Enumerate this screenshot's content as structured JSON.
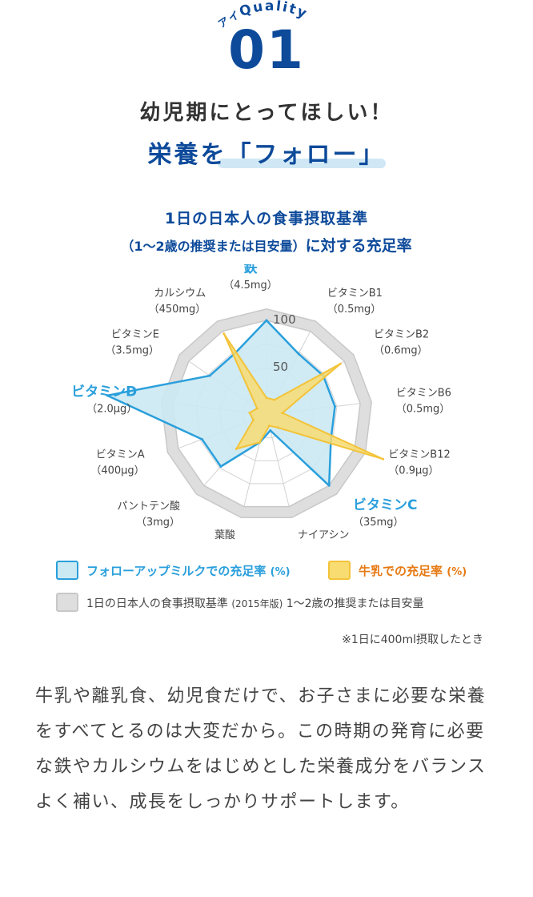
{
  "header": {
    "kicker_prefix": "アイ",
    "kicker": "Quality",
    "number": "01",
    "title_line1": "幼児期にとってほしい！",
    "title_line2": "栄養を「フォロー」"
  },
  "chart_title": {
    "line1": "1日の日本人の食事摂取基準",
    "line2_paren": "（1～2歳の推奨または目安量）",
    "line2_main": "に対する充足率"
  },
  "chart_data": {
    "type": "radar",
    "axis_ticks": [
      "50",
      "100"
    ],
    "rlim": [
      0,
      100
    ],
    "reference_level": 100,
    "axes": [
      {
        "name": "鉄",
        "dose": "（4.5mg）",
        "emph": true
      },
      {
        "name": "ビタミンB1",
        "dose": "（0.5mg）",
        "emph": false
      },
      {
        "name": "ビタミンB2",
        "dose": "（0.6mg）",
        "emph": false
      },
      {
        "name": "ビタミンB6",
        "dose": "（0.5mg）",
        "emph": false
      },
      {
        "name": "ビタミンB12",
        "dose": "（0.9μg）",
        "emph": false
      },
      {
        "name": "ビタミンC",
        "dose": "（35mg）",
        "emph": true
      },
      {
        "name": "ナイアシン",
        "dose": "（5mg）",
        "emph": false
      },
      {
        "name": "葉酸",
        "dose": "（90μg）",
        "emph": false
      },
      {
        "name": "パントテン酸",
        "dose": "（3mg）",
        "emph": false
      },
      {
        "name": "ビタミンA",
        "dose": "（400μg）",
        "emph": false
      },
      {
        "name": "ビタミンD",
        "dose": "（2.0μg）",
        "emph": true
      },
      {
        "name": "ビタミンE",
        "dose": "（3.5mg）",
        "emph": false
      },
      {
        "name": "カルシウム",
        "dose": "（450mg）",
        "emph": false
      }
    ],
    "series": [
      {
        "name": "フォローアップミルクでの充足率",
        "unit": "(%)",
        "color": "#2a9fdc",
        "fill": "#cbe9f2",
        "values": [
          100,
          73,
          73,
          73,
          73,
          100,
          17,
          30,
          73,
          73,
          170,
          73,
          73
        ]
      },
      {
        "name": "牛乳での充足率",
        "unit": "(%)",
        "color": "#f3c339",
        "fill": "#f8dc72",
        "values": [
          18,
          18,
          95,
          17,
          132,
          18,
          12,
          30,
          48,
          15,
          18,
          12,
          97
        ]
      }
    ],
    "reference_legend": "1日の日本人の食事摂取基準",
    "reference_legend_small": "(2015年版)",
    "reference_legend_rest": "1～2歳の推奨または目安量",
    "reference_color": "#c8c8c8"
  },
  "note": "※1日に400ml摂取したとき",
  "body_text": "牛乳や離乳食、幼児食だけで、お子さまに必要な栄養をすべてとるのは大変だから。この時期の発育に必要な鉄やカルシウムをはじめとした栄養成分をバランスよく補い、成長をしっかりサポートします。"
}
